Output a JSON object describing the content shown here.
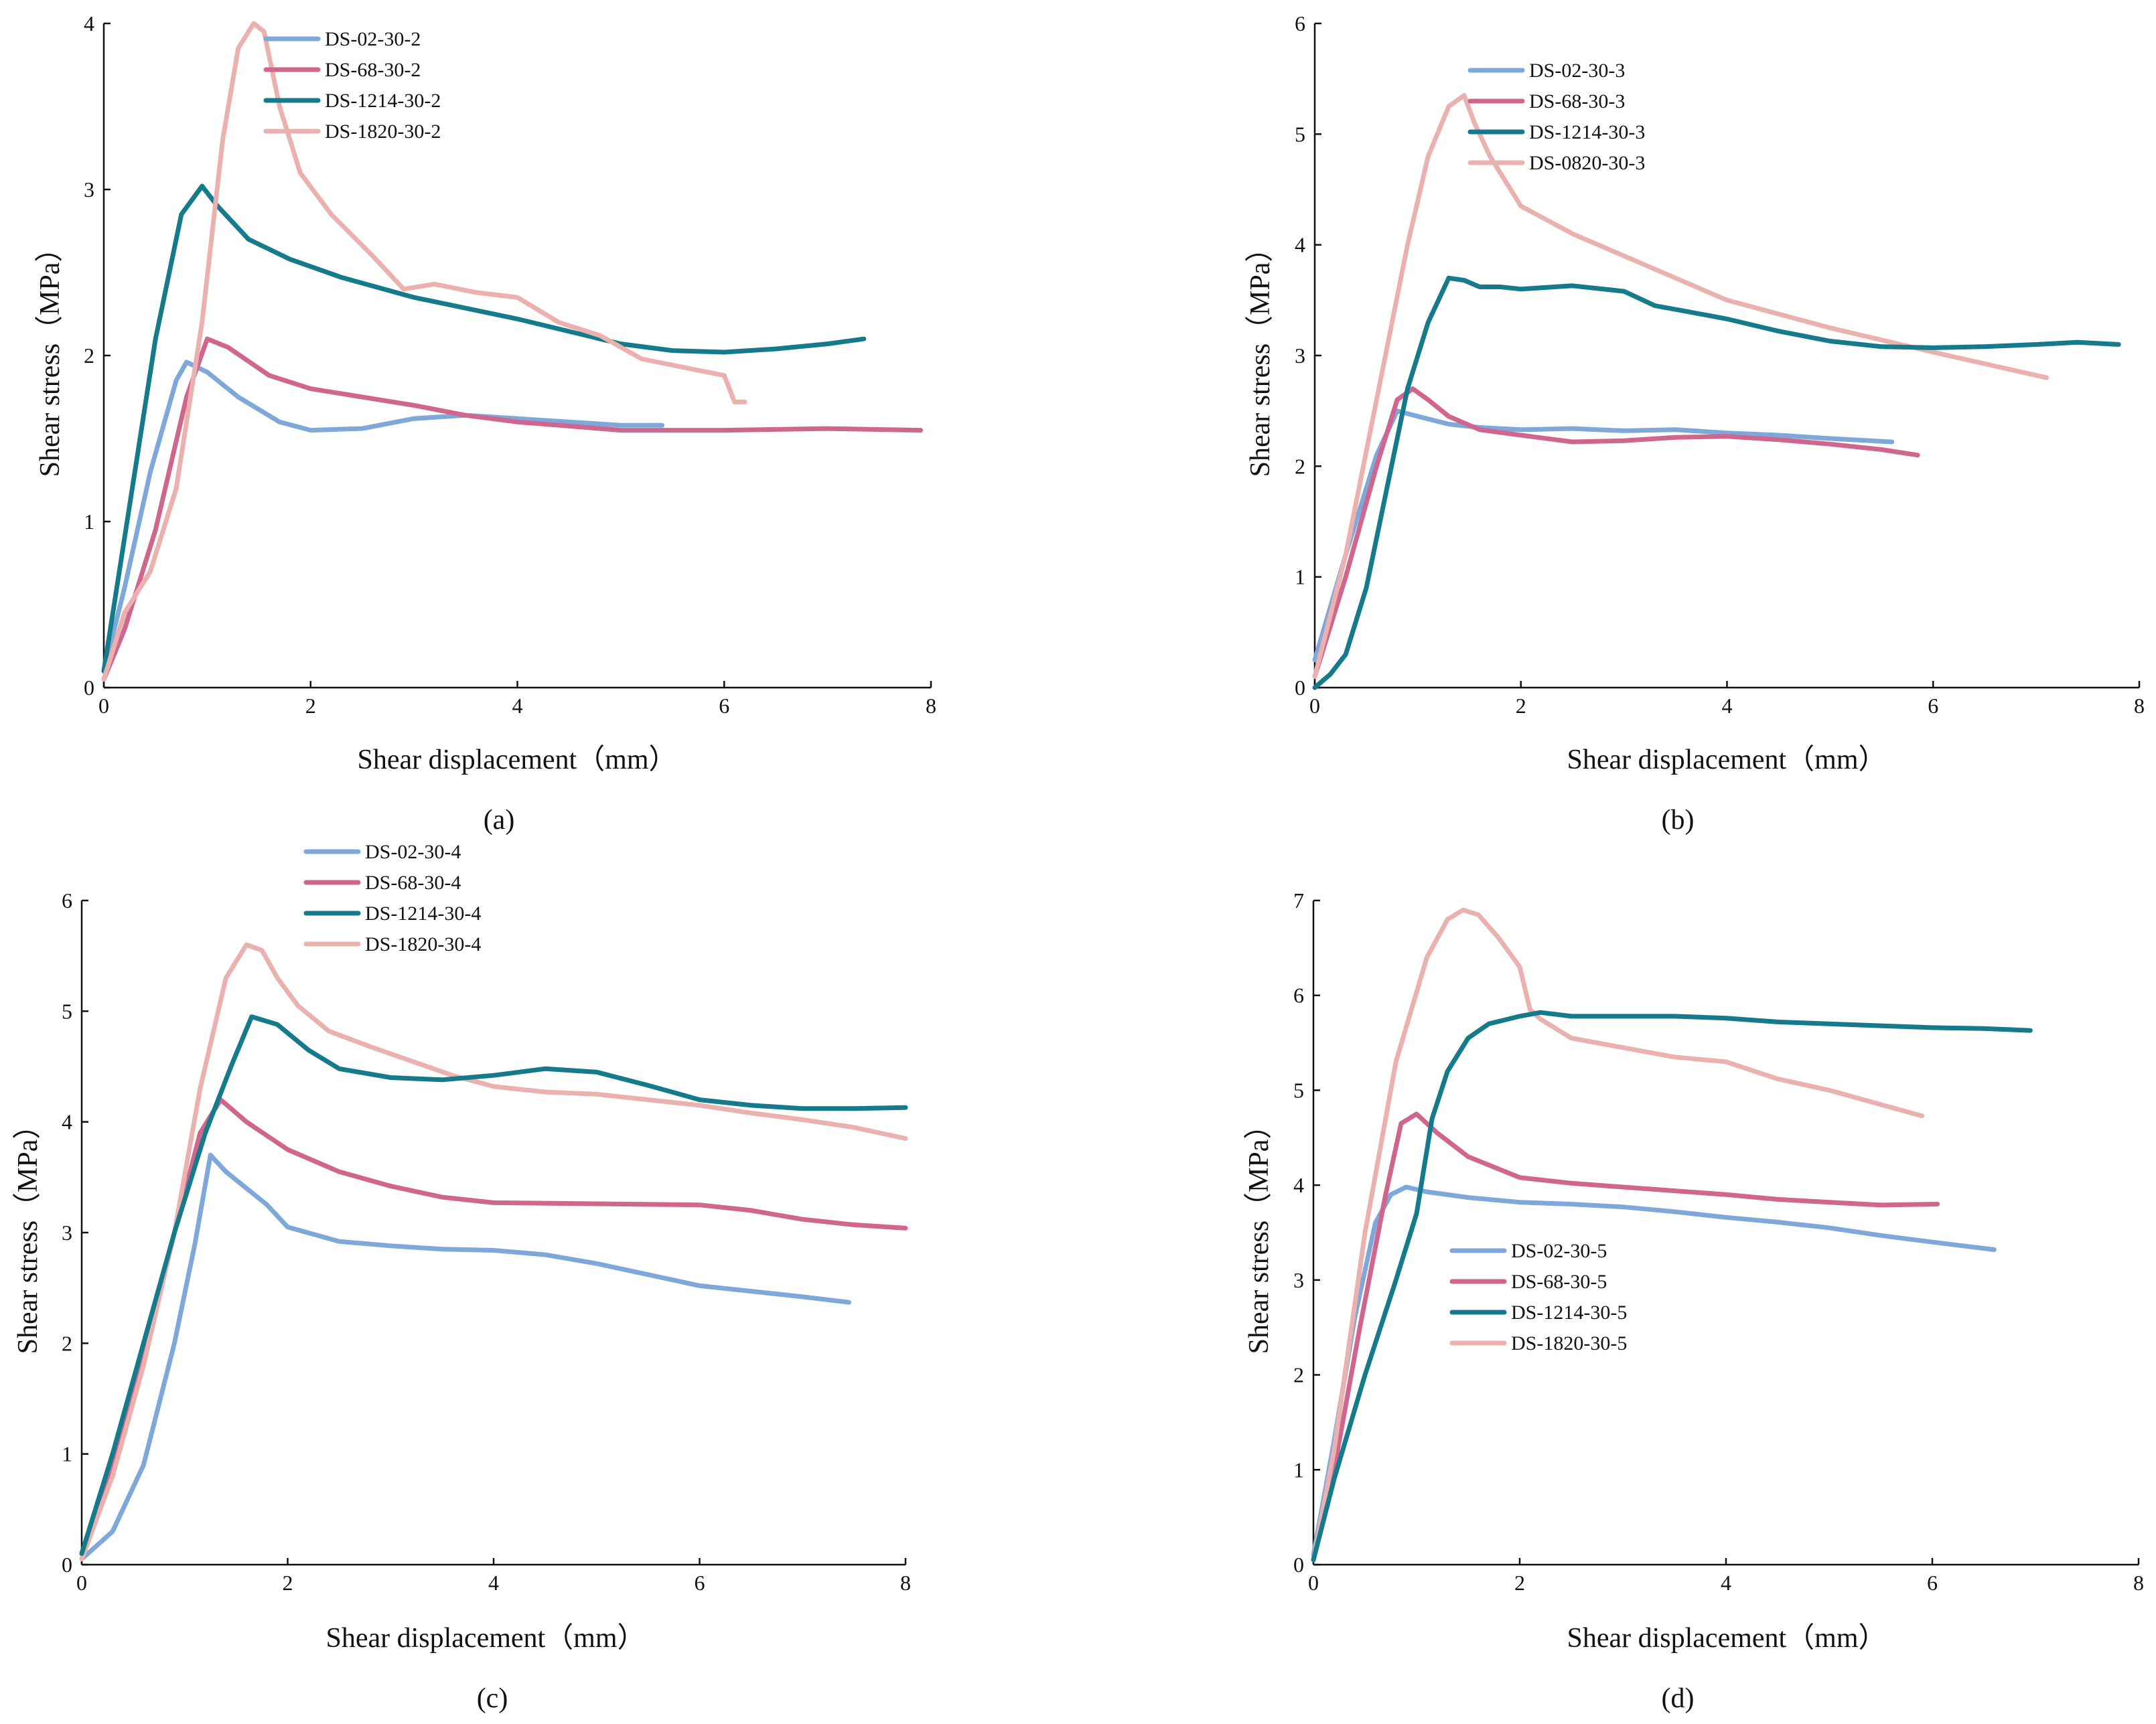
{
  "figure": {
    "panels": [
      {
        "id": "a",
        "label": "(a)",
        "chart_data": {
          "type": "line",
          "xlabel": "Shear displacement（mm）",
          "ylabel": "Shear stress（MPa）",
          "xlim": [
            0,
            8
          ],
          "ylim": [
            0,
            4
          ],
          "xticks": [
            0,
            2,
            4,
            6,
            8
          ],
          "yticks": [
            0,
            1,
            2,
            3,
            4
          ],
          "legend_position": "top-left",
          "series": [
            {
              "name": "DS-02-30-2",
              "color": "#7fa8da",
              "x": [
                0,
                0.2,
                0.45,
                0.7,
                0.8,
                1.0,
                1.3,
                1.7,
                2.0,
                2.5,
                3.0,
                3.5,
                4.0,
                4.5,
                5.0,
                5.4
              ],
              "y": [
                0.1,
                0.6,
                1.3,
                1.85,
                1.96,
                1.9,
                1.75,
                1.6,
                1.55,
                1.56,
                1.62,
                1.64,
                1.62,
                1.6,
                1.58,
                1.58
              ]
            },
            {
              "name": "DS-68-30-2",
              "color": "#d0668e",
              "x": [
                0,
                0.2,
                0.5,
                0.8,
                1.0,
                1.2,
                1.6,
                2.0,
                2.5,
                3.0,
                3.5,
                4.0,
                5.0,
                6.0,
                7.0,
                7.9
              ],
              "y": [
                0.05,
                0.35,
                0.95,
                1.75,
                2.1,
                2.05,
                1.88,
                1.8,
                1.75,
                1.7,
                1.64,
                1.6,
                1.55,
                1.55,
                1.56,
                1.55
              ]
            },
            {
              "name": "DS-1214-30-2",
              "color": "#147a8c",
              "x": [
                0,
                0.2,
                0.5,
                0.75,
                0.95,
                1.1,
                1.4,
                1.8,
                2.3,
                3.0,
                4.0,
                5.0,
                5.5,
                6.0,
                6.5,
                7.0,
                7.35
              ],
              "y": [
                0.1,
                0.9,
                2.1,
                2.85,
                3.02,
                2.9,
                2.7,
                2.58,
                2.47,
                2.35,
                2.22,
                2.07,
                2.03,
                2.02,
                2.04,
                2.07,
                2.1
              ]
            },
            {
              "name": "DS-1820-30-2",
              "color": "#eab1ae",
              "x": [
                0,
                0.2,
                0.45,
                0.7,
                0.95,
                1.15,
                1.3,
                1.45,
                1.55,
                1.7,
                1.9,
                2.2,
                2.6,
                2.9,
                3.2,
                3.6,
                4.0,
                4.4,
                4.8,
                5.2,
                5.6,
                6.0,
                6.1,
                6.2
              ],
              "y": [
                0.05,
                0.45,
                0.7,
                1.2,
                2.2,
                3.3,
                3.85,
                4.0,
                3.95,
                3.5,
                3.1,
                2.85,
                2.6,
                2.4,
                2.43,
                2.38,
                2.35,
                2.2,
                2.12,
                1.98,
                1.93,
                1.88,
                1.72,
                1.72
              ]
            }
          ]
        }
      },
      {
        "id": "b",
        "label": "(b)",
        "chart_data": {
          "type": "line",
          "xlabel": "Shear displacement（mm）",
          "ylabel": "Shear stress（MPa）",
          "xlim": [
            0,
            8
          ],
          "ylim": [
            0,
            6
          ],
          "xticks": [
            0,
            2,
            4,
            6,
            8
          ],
          "yticks": [
            0,
            1,
            2,
            3,
            4,
            5,
            6
          ],
          "legend_position": "top-center",
          "series": [
            {
              "name": "DS-02-30-3",
              "color": "#7fa8da",
              "x": [
                0,
                0.3,
                0.6,
                0.8,
                1.0,
                1.3,
                1.6,
                2.0,
                2.5,
                3.0,
                3.5,
                4.0,
                4.5,
                5.0,
                5.6
              ],
              "y": [
                0.25,
                1.2,
                2.1,
                2.5,
                2.45,
                2.38,
                2.35,
                2.33,
                2.34,
                2.32,
                2.33,
                2.3,
                2.28,
                2.25,
                2.22
              ]
            },
            {
              "name": "DS-68-30-3",
              "color": "#d0668e",
              "x": [
                0,
                0.3,
                0.6,
                0.8,
                0.95,
                1.1,
                1.3,
                1.6,
                2.0,
                2.5,
                3.0,
                3.5,
                4.0,
                4.5,
                5.0,
                5.5,
                5.85
              ],
              "y": [
                0.1,
                1.0,
                2.0,
                2.6,
                2.7,
                2.6,
                2.45,
                2.33,
                2.28,
                2.22,
                2.23,
                2.26,
                2.27,
                2.24,
                2.2,
                2.15,
                2.1
              ]
            },
            {
              "name": "DS-1214-30-3",
              "color": "#147a8c",
              "x": [
                0,
                0.15,
                0.3,
                0.5,
                0.7,
                0.9,
                1.1,
                1.3,
                1.45,
                1.6,
                1.8,
                2.0,
                2.5,
                3.0,
                3.3,
                3.6,
                4.0,
                4.5,
                5.0,
                5.5,
                6.0,
                6.5,
                7.0,
                7.4,
                7.8
              ],
              "y": [
                0.0,
                0.12,
                0.3,
                0.9,
                1.8,
                2.7,
                3.3,
                3.7,
                3.68,
                3.62,
                3.62,
                3.6,
                3.63,
                3.58,
                3.45,
                3.4,
                3.33,
                3.22,
                3.13,
                3.08,
                3.07,
                3.08,
                3.1,
                3.12,
                3.1
              ]
            },
            {
              "name": "DS-0820-30-3",
              "color": "#eab1ae",
              "x": [
                0,
                0.3,
                0.6,
                0.9,
                1.1,
                1.3,
                1.45,
                1.55,
                1.7,
                2.0,
                2.5,
                3.0,
                3.5,
                4.0,
                5.0,
                6.0,
                7.1
              ],
              "y": [
                0.1,
                1.2,
                2.6,
                4.0,
                4.8,
                5.25,
                5.35,
                5.1,
                4.8,
                4.35,
                4.1,
                3.9,
                3.7,
                3.5,
                3.25,
                3.03,
                2.8
              ]
            }
          ]
        }
      },
      {
        "id": "c",
        "label": "(c)",
        "chart_data": {
          "type": "line",
          "xlabel": "Shear displacement（mm）",
          "ylabel": "Shear stress（MPa）",
          "xlim": [
            0,
            8
          ],
          "ylim": [
            0,
            6
          ],
          "xticks": [
            0,
            2,
            4,
            6,
            8
          ],
          "yticks": [
            0,
            1,
            2,
            3,
            4,
            5,
            6
          ],
          "legend_position": "top-center",
          "series": [
            {
              "name": "DS-02-30-4",
              "color": "#7fa8da",
              "x": [
                0,
                0.3,
                0.6,
                0.9,
                1.1,
                1.25,
                1.4,
                1.6,
                1.8,
                2.0,
                2.5,
                3.0,
                3.5,
                4.0,
                4.5,
                5.0,
                5.5,
                6.0,
                6.5,
                7.0,
                7.45
              ],
              "y": [
                0.05,
                0.3,
                0.9,
                2.0,
                2.9,
                3.7,
                3.55,
                3.4,
                3.25,
                3.05,
                2.92,
                2.88,
                2.85,
                2.84,
                2.8,
                2.72,
                2.62,
                2.52,
                2.47,
                2.42,
                2.37
              ]
            },
            {
              "name": "DS-68-30-4",
              "color": "#d0668e",
              "x": [
                0,
                0.3,
                0.6,
                0.9,
                1.15,
                1.35,
                1.6,
                2.0,
                2.5,
                3.0,
                3.5,
                4.0,
                5.0,
                6.0,
                6.5,
                7.0,
                7.5,
                8.0
              ],
              "y": [
                0.1,
                0.9,
                1.9,
                3.0,
                3.9,
                4.2,
                4.0,
                3.75,
                3.55,
                3.42,
                3.32,
                3.27,
                3.26,
                3.25,
                3.2,
                3.12,
                3.07,
                3.04
              ]
            },
            {
              "name": "DS-1214-30-4",
              "color": "#147a8c",
              "x": [
                0,
                0.3,
                0.6,
                0.9,
                1.2,
                1.45,
                1.65,
                1.9,
                2.2,
                2.5,
                3.0,
                3.5,
                4.0,
                4.5,
                5.0,
                5.5,
                6.0,
                6.5,
                7.0,
                7.5,
                8.0
              ],
              "y": [
                0.1,
                1.0,
                2.0,
                3.0,
                3.9,
                4.5,
                4.95,
                4.88,
                4.65,
                4.48,
                4.4,
                4.38,
                4.42,
                4.48,
                4.45,
                4.33,
                4.2,
                4.15,
                4.12,
                4.12,
                4.13
              ]
            },
            {
              "name": "DS-1820-30-4",
              "color": "#eab1ae",
              "x": [
                0,
                0.3,
                0.6,
                0.9,
                1.15,
                1.4,
                1.6,
                1.75,
                1.9,
                2.1,
                2.4,
                2.8,
                3.2,
                3.6,
                4.0,
                4.5,
                5.0,
                5.5,
                6.0,
                6.5,
                7.0,
                7.5,
                8.0
              ],
              "y": [
                0.05,
                0.8,
                1.8,
                3.0,
                4.3,
                5.3,
                5.6,
                5.55,
                5.3,
                5.05,
                4.82,
                4.68,
                4.55,
                4.42,
                4.32,
                4.27,
                4.25,
                4.2,
                4.15,
                4.08,
                4.02,
                3.95,
                3.85
              ]
            }
          ]
        }
      },
      {
        "id": "d",
        "label": "(d)",
        "chart_data": {
          "type": "line",
          "xlabel": "Shear displacement（mm）",
          "ylabel": "Shear stress（MPa）",
          "xlim": [
            0,
            8
          ],
          "ylim": [
            0,
            7
          ],
          "xticks": [
            0,
            2,
            4,
            6,
            8
          ],
          "yticks": [
            0,
            1,
            2,
            3,
            4,
            5,
            6,
            7
          ],
          "legend_position": "center",
          "series": [
            {
              "name": "DS-02-30-5",
              "color": "#7fa8da",
              "x": [
                0,
                0.2,
                0.4,
                0.6,
                0.75,
                0.9,
                1.1,
                1.5,
                2.0,
                2.5,
                3.0,
                3.5,
                4.0,
                4.5,
                5.0,
                5.5,
                6.0,
                6.6
              ],
              "y": [
                0.1,
                1.3,
                2.6,
                3.6,
                3.9,
                3.98,
                3.93,
                3.87,
                3.82,
                3.8,
                3.77,
                3.72,
                3.66,
                3.61,
                3.55,
                3.47,
                3.4,
                3.32
              ]
            },
            {
              "name": "DS-68-30-5",
              "color": "#d0668e",
              "x": [
                0,
                0.2,
                0.45,
                0.7,
                0.85,
                1.0,
                1.2,
                1.5,
                2.0,
                2.5,
                3.0,
                3.5,
                4.0,
                4.5,
                5.0,
                5.5,
                6.05
              ],
              "y": [
                0.05,
                1.0,
                2.5,
                3.9,
                4.65,
                4.75,
                4.55,
                4.3,
                4.08,
                4.02,
                3.98,
                3.94,
                3.9,
                3.85,
                3.82,
                3.79,
                3.8
              ]
            },
            {
              "name": "DS-1214-30-5",
              "color": "#147a8c",
              "x": [
                0,
                0.2,
                0.5,
                0.8,
                1.0,
                1.15,
                1.3,
                1.5,
                1.7,
                2.0,
                2.2,
                2.5,
                3.0,
                3.5,
                4.0,
                4.5,
                5.0,
                5.5,
                6.0,
                6.5,
                6.95
              ],
              "y": [
                0.05,
                0.9,
                2.0,
                3.0,
                3.7,
                4.7,
                5.2,
                5.55,
                5.7,
                5.78,
                5.82,
                5.78,
                5.78,
                5.78,
                5.76,
                5.72,
                5.7,
                5.68,
                5.66,
                5.65,
                5.63
              ]
            },
            {
              "name": "DS-1820-30-5",
              "color": "#eab1ae",
              "x": [
                0,
                0.2,
                0.5,
                0.8,
                1.1,
                1.3,
                1.45,
                1.6,
                1.8,
                2.0,
                2.1,
                2.2,
                2.5,
                3.0,
                3.5,
                4.0,
                4.5,
                5.0,
                5.5,
                5.9
              ],
              "y": [
                0.05,
                1.2,
                3.5,
                5.3,
                6.4,
                6.8,
                6.9,
                6.85,
                6.6,
                6.3,
                5.85,
                5.75,
                5.55,
                5.45,
                5.35,
                5.3,
                5.12,
                5.0,
                4.85,
                4.73
              ]
            }
          ]
        }
      }
    ]
  }
}
